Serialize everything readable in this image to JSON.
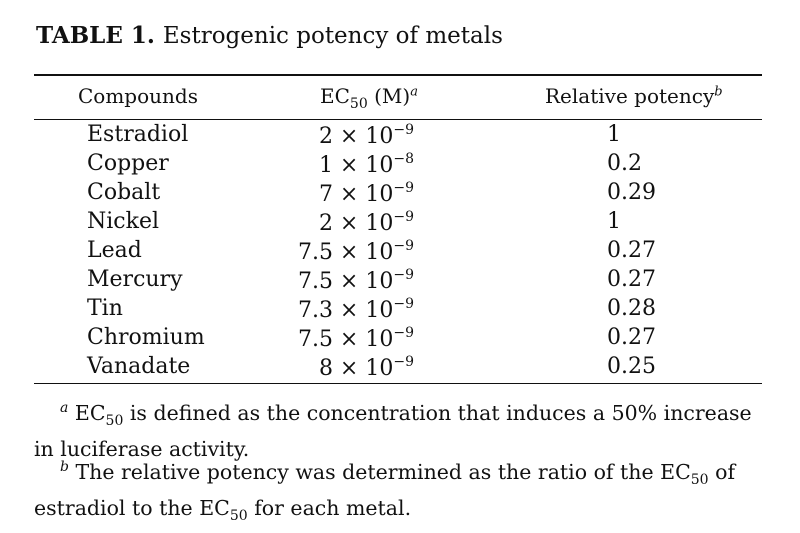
{
  "caption": {
    "label": "TABLE 1.",
    "title": "Estrogenic potency of metals"
  },
  "headers": {
    "compounds": "Compounds",
    "ec50_base": "EC",
    "ec50_sub": "50",
    "ec50_unit": " (M)",
    "ec50_mark": "a",
    "relative": "Relative potency",
    "relative_mark": "b"
  },
  "rows": [
    {
      "compound": "Estradiol",
      "coef": "2 × 10",
      "exp": "−9",
      "relative": "1"
    },
    {
      "compound": "Copper",
      "coef": "1 × 10",
      "exp": "−8",
      "relative": "0.2"
    },
    {
      "compound": "Cobalt",
      "coef": "7 × 10",
      "exp": "−9",
      "relative": "0.29"
    },
    {
      "compound": "Nickel",
      "coef": "2 × 10",
      "exp": "−9",
      "relative": "1"
    },
    {
      "compound": "Lead",
      "coef": "7.5 × 10",
      "exp": "−9",
      "relative": "0.27"
    },
    {
      "compound": "Mercury",
      "coef": "7.5 × 10",
      "exp": "−9",
      "relative": "0.27"
    },
    {
      "compound": "Tin",
      "coef": "7.3 × 10",
      "exp": "−9",
      "relative": "0.28"
    },
    {
      "compound": "Chromium",
      "coef": "7.5 × 10",
      "exp": "−9",
      "relative": "0.27"
    },
    {
      "compound": "Vanadate",
      "coef": "8 × 10",
      "exp": "−9",
      "relative": "0.25"
    }
  ],
  "footnotes": {
    "a_mark": "a",
    "a_pre": " EC",
    "a_sub": "50",
    "a_post": " is defined as the concentration that induces a 50% increase in luciferase activity.",
    "b_mark": "b",
    "b_pre": " The relative potency was determined as the ratio of the EC",
    "b_sub1": "50",
    "b_mid": " of estradiol to the EC",
    "b_sub2": "50",
    "b_post": " for each metal."
  }
}
